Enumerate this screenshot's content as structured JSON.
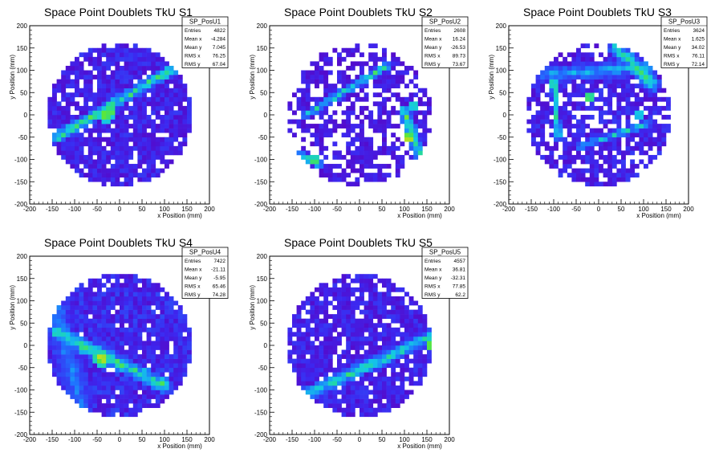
{
  "chart_data": [
    {
      "type": "heatmap",
      "title": "Space Point Doublets TkU S1",
      "xlabel": "x Position (mm)",
      "ylabel": "y Position (mm)",
      "xlim": [
        -200,
        200
      ],
      "ylim": [
        -200,
        200
      ],
      "x_ticks": [
        "-200",
        "-150",
        "-100",
        "-50",
        "0",
        "50",
        "100",
        "150",
        "200"
      ],
      "y_ticks": [
        "-200",
        "-150",
        "-100",
        "-50",
        "0",
        "50",
        "100",
        "150",
        "200"
      ],
      "stats": {
        "name": "SP_PosU1",
        "rows": [
          [
            "Entries",
            "4822"
          ],
          [
            "Mean x",
            "-4.284"
          ],
          [
            "Mean y",
            "7.045"
          ],
          [
            "RMS x",
            "76.25"
          ],
          [
            "RMS y",
            "67.04"
          ]
        ]
      },
      "bin_size": 10,
      "disk_center": [
        0,
        0
      ],
      "disk_radius": 160,
      "fill_fraction": 0.9,
      "base_level": 0.12,
      "bands": [
        {
          "x1": -140,
          "y1": -50,
          "x2": 130,
          "y2": 110,
          "width": 14,
          "peak": 0.6
        }
      ],
      "hotspots": [
        {
          "x": -30,
          "y": 0,
          "r": 18,
          "peak": 0.85
        },
        {
          "x": -20,
          "y": 10,
          "r": 10,
          "peak": 1.0
        }
      ]
    },
    {
      "type": "heatmap",
      "title": "Space Point Doublets TkU S2",
      "xlabel": "x Position (mm)",
      "ylabel": "y Position (mm)",
      "xlim": [
        -200,
        200
      ],
      "ylim": [
        -200,
        200
      ],
      "x_ticks": [
        "-200",
        "-150",
        "-100",
        "-50",
        "0",
        "50",
        "100",
        "150",
        "200"
      ],
      "y_ticks": [
        "-200",
        "-150",
        "-100",
        "-50",
        "0",
        "50",
        "100",
        "150",
        "200"
      ],
      "stats": {
        "name": "SP_PosU2",
        "rows": [
          [
            "Entries",
            "2608"
          ],
          [
            "Mean x",
            "16.24"
          ],
          [
            "Mean y",
            "-26.53"
          ],
          [
            "RMS x",
            "89.73"
          ],
          [
            "RMS y",
            "73.67"
          ]
        ]
      },
      "bin_size": 10,
      "disk_center": [
        0,
        0
      ],
      "disk_radius": 160,
      "fill_fraction": 0.6,
      "base_level": 0.1,
      "bands": [
        {
          "x1": -120,
          "y1": 0,
          "x2": 60,
          "y2": 110,
          "width": 10,
          "peak": 0.55
        },
        {
          "x1": 100,
          "y1": 10,
          "x2": 140,
          "y2": -110,
          "width": 14,
          "peak": 0.6
        },
        {
          "x1": -130,
          "y1": -90,
          "x2": -90,
          "y2": -110,
          "width": 10,
          "peak": 0.7
        }
      ],
      "hotspots": [
        {
          "x": 110,
          "y": -50,
          "r": 14,
          "peak": 1.0
        },
        {
          "x": -100,
          "y": -100,
          "r": 12,
          "peak": 0.85
        },
        {
          "x": 120,
          "y": 20,
          "r": 10,
          "peak": 0.8
        }
      ]
    },
    {
      "type": "heatmap",
      "title": "Space Point Doublets TkU S3",
      "xlabel": "x Position (mm)",
      "ylabel": "y Position (mm)",
      "xlim": [
        -200,
        200
      ],
      "ylim": [
        -200,
        200
      ],
      "x_ticks": [
        "-200",
        "-150",
        "-100",
        "-50",
        "0",
        "50",
        "100",
        "150",
        "200"
      ],
      "y_ticks": [
        "-200",
        "-150",
        "-100",
        "-50",
        "0",
        "50",
        "100",
        "150",
        "200"
      ],
      "stats": {
        "name": "SP_PosU3",
        "rows": [
          [
            "Entries",
            "3624"
          ],
          [
            "Mean x",
            "1.625"
          ],
          [
            "Mean y",
            "34.02"
          ],
          [
            "RMS x",
            "76.11"
          ],
          [
            "RMS y",
            "72.14"
          ]
        ]
      },
      "bin_size": 10,
      "disk_center": [
        0,
        0
      ],
      "disk_radius": 160,
      "fill_fraction": 0.72,
      "base_level": 0.12,
      "bands": [
        {
          "x1": -100,
          "y1": 80,
          "x2": -90,
          "y2": -50,
          "width": 8,
          "peak": 0.6
        },
        {
          "x1": 40,
          "y1": 150,
          "x2": 120,
          "y2": 70,
          "width": 20,
          "peak": 0.55
        },
        {
          "x1": -40,
          "y1": -70,
          "x2": 110,
          "y2": -20,
          "width": 10,
          "peak": 0.45
        },
        {
          "x1": -120,
          "y1": 90,
          "x2": 130,
          "y2": 110,
          "width": 20,
          "peak": 0.4
        }
      ],
      "hotspots": [
        {
          "x": -20,
          "y": 40,
          "r": 10,
          "peak": 1.0
        },
        {
          "x": -100,
          "y": 70,
          "r": 8,
          "peak": 0.9
        },
        {
          "x": 90,
          "y": 0,
          "r": 8,
          "peak": 0.85
        }
      ]
    },
    {
      "type": "heatmap",
      "title": "Space Point Doublets TkU S4",
      "xlabel": "x Position (mm)",
      "ylabel": "y Position (mm)",
      "xlim": [
        -200,
        200
      ],
      "ylim": [
        -200,
        200
      ],
      "x_ticks": [
        "-200",
        "-150",
        "-100",
        "-50",
        "0",
        "50",
        "100",
        "150",
        "200"
      ],
      "y_ticks": [
        "-200",
        "-150",
        "-100",
        "-50",
        "0",
        "50",
        "100",
        "150",
        "200"
      ],
      "stats": {
        "name": "SP_PosU4",
        "rows": [
          [
            "Entries",
            "7422"
          ],
          [
            "Mean x",
            "-21.11"
          ],
          [
            "Mean y",
            "-5.95"
          ],
          [
            "RMS x",
            "65.46"
          ],
          [
            "RMS y",
            "74.28"
          ]
        ]
      },
      "bin_size": 10,
      "disk_center": [
        0,
        0
      ],
      "disk_radius": 160,
      "fill_fraction": 0.92,
      "base_level": 0.14,
      "bands": [
        {
          "x1": -140,
          "y1": 30,
          "x2": 100,
          "y2": -90,
          "width": 18,
          "peak": 0.6
        },
        {
          "x1": -150,
          "y1": 120,
          "x2": -90,
          "y2": -130,
          "width": 30,
          "peak": 0.35
        }
      ],
      "hotspots": [
        {
          "x": -40,
          "y": -30,
          "r": 18,
          "peak": 1.0
        },
        {
          "x": -80,
          "y": -5,
          "r": 12,
          "peak": 0.75
        }
      ]
    },
    {
      "type": "heatmap",
      "title": "Space Point Doublets TkU S5",
      "xlabel": "x Position (mm)",
      "ylabel": "y Position (mm)",
      "xlim": [
        -200,
        200
      ],
      "ylim": [
        -200,
        200
      ],
      "x_ticks": [
        "-200",
        "-150",
        "-100",
        "-50",
        "0",
        "50",
        "100",
        "150",
        "200"
      ],
      "y_ticks": [
        "-200",
        "-150",
        "-100",
        "-50",
        "0",
        "50",
        "100",
        "150",
        "200"
      ],
      "stats": {
        "name": "SP_PosU5",
        "rows": [
          [
            "Entries",
            "4557"
          ],
          [
            "Mean x",
            "36.81"
          ],
          [
            "Mean y",
            "-32.31"
          ],
          [
            "RMS x",
            "77.85"
          ],
          [
            "RMS y",
            "62.2"
          ]
        ]
      },
      "bin_size": 10,
      "disk_center": [
        0,
        0
      ],
      "disk_radius": 160,
      "fill_fraction": 0.85,
      "base_level": 0.12,
      "bands": [
        {
          "x1": -120,
          "y1": -110,
          "x2": 160,
          "y2": 20,
          "width": 16,
          "peak": 0.55
        }
      ],
      "hotspots": [
        {
          "x": 155,
          "y": 0,
          "r": 8,
          "peak": 1.0
        },
        {
          "x": 150,
          "y": 10,
          "r": 6,
          "peak": 0.8
        }
      ]
    }
  ]
}
